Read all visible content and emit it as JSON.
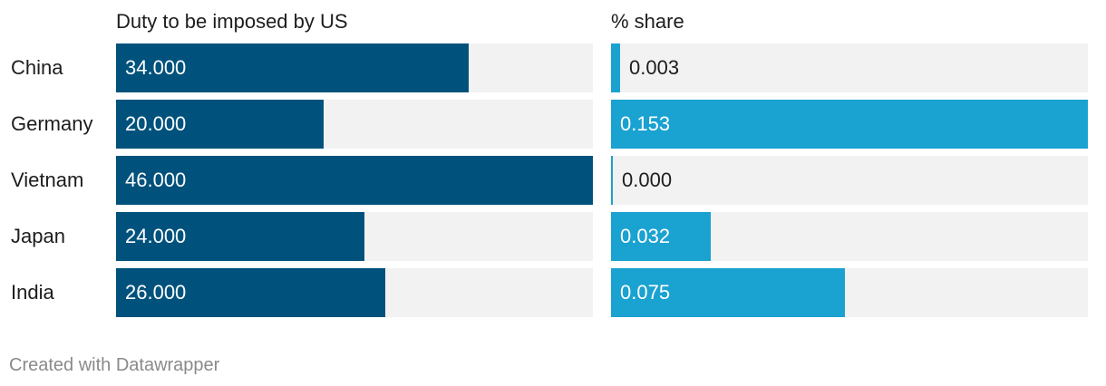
{
  "chart_data": {
    "type": "bar",
    "orientation": "horizontal",
    "categories": [
      "China",
      "Germany",
      "Vietnam",
      "Japan",
      "India"
    ],
    "series": [
      {
        "name": "Duty to be imposed by US",
        "values": [
          34.0,
          20.0,
          46.0,
          24.0,
          26.0
        ],
        "labels": [
          "34.000",
          "20.000",
          "46.000",
          "24.000",
          "26.000"
        ],
        "max": 46.0,
        "color": "#00527c"
      },
      {
        "name": "% share",
        "values": [
          0.003,
          0.153,
          0.0,
          0.032,
          0.075
        ],
        "labels": [
          "0.003",
          "0.153",
          "0.000",
          "0.032",
          "0.075"
        ],
        "max": 0.153,
        "color": "#1aa2d0"
      }
    ],
    "track_color": "#f2f2f2",
    "grid": false
  },
  "footer": {
    "credit": "Created with Datawrapper"
  }
}
